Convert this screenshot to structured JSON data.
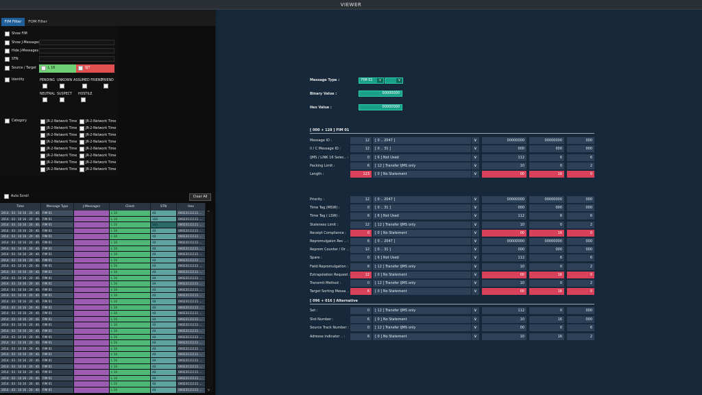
{
  "window": {
    "title": "VIEWER"
  },
  "tabs": [
    {
      "label": "FIM Filter",
      "active": true
    },
    {
      "label": "FOM Filter",
      "active": false
    }
  ],
  "filter": {
    "show_fim": "Show FIM",
    "show_jmessages": "Show J-Messages",
    "hide_jmessages": "Hide J-Messages",
    "stn": "STN",
    "source_target": "Source / Target",
    "source_value": "L 16",
    "target_value": "SJT",
    "identity": "Identity",
    "identity_opts": [
      "PENDING",
      "UNKOWN",
      "ASSUMED FRIEND",
      "FRIEND",
      "NEUTRAL",
      "SUSPECT",
      "HOSTILE"
    ],
    "category": "Category",
    "category_items": [
      "JR-2-Network Time",
      "JR-2-Network Time",
      "JR-2-Network Time",
      "JR-2-Network Time",
      "JR-2-Network Time",
      "JR-2-Network Time",
      "JR-2-Network Time",
      "JR-2-Network Time",
      "JR-2-Network Time",
      "JR-2-Network Time",
      "JR-2-Network Time",
      "JR-2-Network Time",
      "JR-2-Network Time",
      "JR-2-Network Time",
      "JR-2-Network Time",
      "JR-2-Network Time"
    ]
  },
  "autoscroll": {
    "label": "Auto Scroll",
    "clear_label": "Clear All"
  },
  "grid": {
    "headers": [
      "Time",
      "Message Type",
      "J-Messages",
      "Client",
      "STN",
      "Hex"
    ],
    "time": "2014 : 03 : 10  16 : 20 : 40..",
    "type": "FIM 01",
    "client": "L 16",
    "stn_values": [
      "48",
      "168",
      "104",
      "48"
    ],
    "hex": "00023111111 ...",
    "scroll_up": "^",
    "scroll_down": "v"
  },
  "viewer": {
    "message_type_label": "Message Type :",
    "message_type_value": "FIM 01",
    "binary_label": "Binary Value :",
    "binary_value": "00000000",
    "hex_label": "Hex Value :",
    "hex_value": "00000000",
    "arrow": "∨",
    "section1": "[ 000 + 128 ] FIM 01",
    "section2": "[ 096 + 016 ] Alternative",
    "rows1": [
      {
        "label": "Message ID :",
        "n": "12",
        "range": "[ 0 .. 2047 ]",
        "a": "00000000",
        "b": "00000000",
        "c": "000",
        "red": false
      },
      {
        "label": "II / C Message ID :",
        "n": "12",
        "range": "[ 0 .. 31 ]",
        "a": "000",
        "b": "000",
        "c": "000",
        "red": false
      },
      {
        "label": "IJMS / LINK 16 Selec.. :",
        "n": "0",
        "range": "[ 6 ] Not Used",
        "a": "112",
        "b": "6",
        "c": "6",
        "red": false
      },
      {
        "label": "Packing Limit :",
        "n": "6",
        "range": "[ 12 ] Transfer IJMS only",
        "a": "10",
        "b": "0",
        "c": "2",
        "red": false
      },
      {
        "label": "Length :",
        "n": "123",
        "range": "[ 0 ] No Statement",
        "a": "00",
        "b": "16",
        "c": "0",
        "red": true
      }
    ],
    "rows2": [
      {
        "label": "Priority :",
        "n": "12",
        "range": "[ 0 .. 2047 ]",
        "a": "00000000",
        "b": "00000000",
        "c": "000",
        "red": false
      },
      {
        "label": "Time Tag (MSW) :",
        "n": "0",
        "range": "[ 0 .. 31 ]",
        "a": "000",
        "b": "000",
        "c": "000",
        "red": false
      },
      {
        "label": "Time Tag ( LSW) :",
        "n": "6",
        "range": "[ 6 ] Not Used",
        "a": "112",
        "b": "6",
        "c": "6",
        "red": false
      },
      {
        "label": "Staleness  Limit :",
        "n": "12",
        "range": "[ 12 ] Transfer IJMS only",
        "a": "10",
        "b": "0",
        "c": "2",
        "red": false
      },
      {
        "label": "Receipt Compliance :",
        "n": "0",
        "range": "[ 0 ] No Statement",
        "a": "00",
        "b": "16",
        "c": "0",
        "red": true
      },
      {
        "label": "Repromulgaion Rec .. :",
        "n": "6",
        "range": "[ 0 .. 2047 ]",
        "a": "00000000",
        "b": "00000000",
        "c": "000",
        "red": false
      },
      {
        "label": "Reprom Counter / Or .. :",
        "n": "12",
        "range": "[ 0 .. 31 ]",
        "a": "000",
        "b": "000",
        "c": "000",
        "red": false
      },
      {
        "label": "Spare :",
        "n": "0",
        "range": "[ 6 ] Not Used",
        "a": "112",
        "b": "6",
        "c": "6",
        "red": false
      },
      {
        "label": "Field Repromulgation :",
        "n": "6",
        "range": "[ 12 ] Transfer IJMS only",
        "a": "10",
        "b": "0",
        "c": "2",
        "red": false
      },
      {
        "label": "Extrapolation Request :",
        "n": "12",
        "range": "[ 0 ] No Statement",
        "a": "00",
        "b": "16",
        "c": "0",
        "red": true
      },
      {
        "label": "Transmit Method :",
        "n": "0",
        "range": "[ 12 ] Transfer IJMS only",
        "a": "10",
        "b": "0",
        "c": "2",
        "red": false
      },
      {
        "label": "Target Sorting Messa .. :",
        "n": "6",
        "range": "[ 0 ] No Statement",
        "a": "00",
        "b": "16",
        "c": "0",
        "red": true
      }
    ],
    "rows3": [
      {
        "label": "Set :",
        "n": "0",
        "range": "[ 12 ] Transfer IJMS only",
        "a": "112",
        "b": "0",
        "c": "000",
        "red": false
      },
      {
        "label": "Slot Number :",
        "n": "6",
        "range": "[ 0 ] No Statement",
        "a": "10",
        "b": "16",
        "c": "000",
        "red": false
      },
      {
        "label": "Source Track  Number :",
        "n": "0",
        "range": "[ 12 ] Transfer IJMS only",
        "a": "00",
        "b": "0",
        "c": "6",
        "red": false
      },
      {
        "label": "Adresse indicator .. :",
        "n": "6",
        "range": "[ 0 ] No Statement",
        "a": "10",
        "b": "16",
        "c": "2",
        "red": false
      }
    ]
  }
}
